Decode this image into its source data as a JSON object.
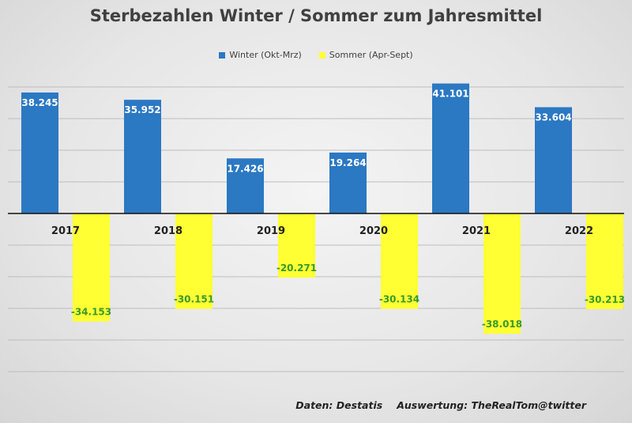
{
  "chart_data": {
    "type": "bar",
    "title": "Sterbezahlen Winter / Sommer zum Jahresmittel",
    "categories": [
      "2017",
      "2018",
      "2019",
      "2020",
      "2021",
      "2022"
    ],
    "series": [
      {
        "name": "Winter (Okt-Mrz)",
        "color": "#2b78c3",
        "values": [
          38245,
          35952,
          17426,
          19264,
          41101,
          33604
        ],
        "labels": [
          "38.245",
          "35.952",
          "17.426",
          "19.264",
          "41.101",
          "33.604"
        ]
      },
      {
        "name": "Sommer (Apr-Sept)",
        "color": "#ffff33",
        "values": [
          -34153,
          -30151,
          -20271,
          -30134,
          -38018,
          -30213
        ],
        "labels": [
          "-34.153",
          "-30.151",
          "-20.271",
          "-30.134",
          "-38.018",
          "-30.213"
        ]
      }
    ],
    "ylim": [
      -50000,
      40000
    ],
    "grid": true,
    "legend_position": "top",
    "colors": {
      "winter_label": "#ffffff",
      "sommer_label": "#3a9a2a",
      "gridline": "#bdbdbd",
      "axis": "#111111"
    }
  },
  "footer": {
    "source": "Daten: Destatis",
    "analysis": "Auswertung: TheRealTom@twitter"
  }
}
